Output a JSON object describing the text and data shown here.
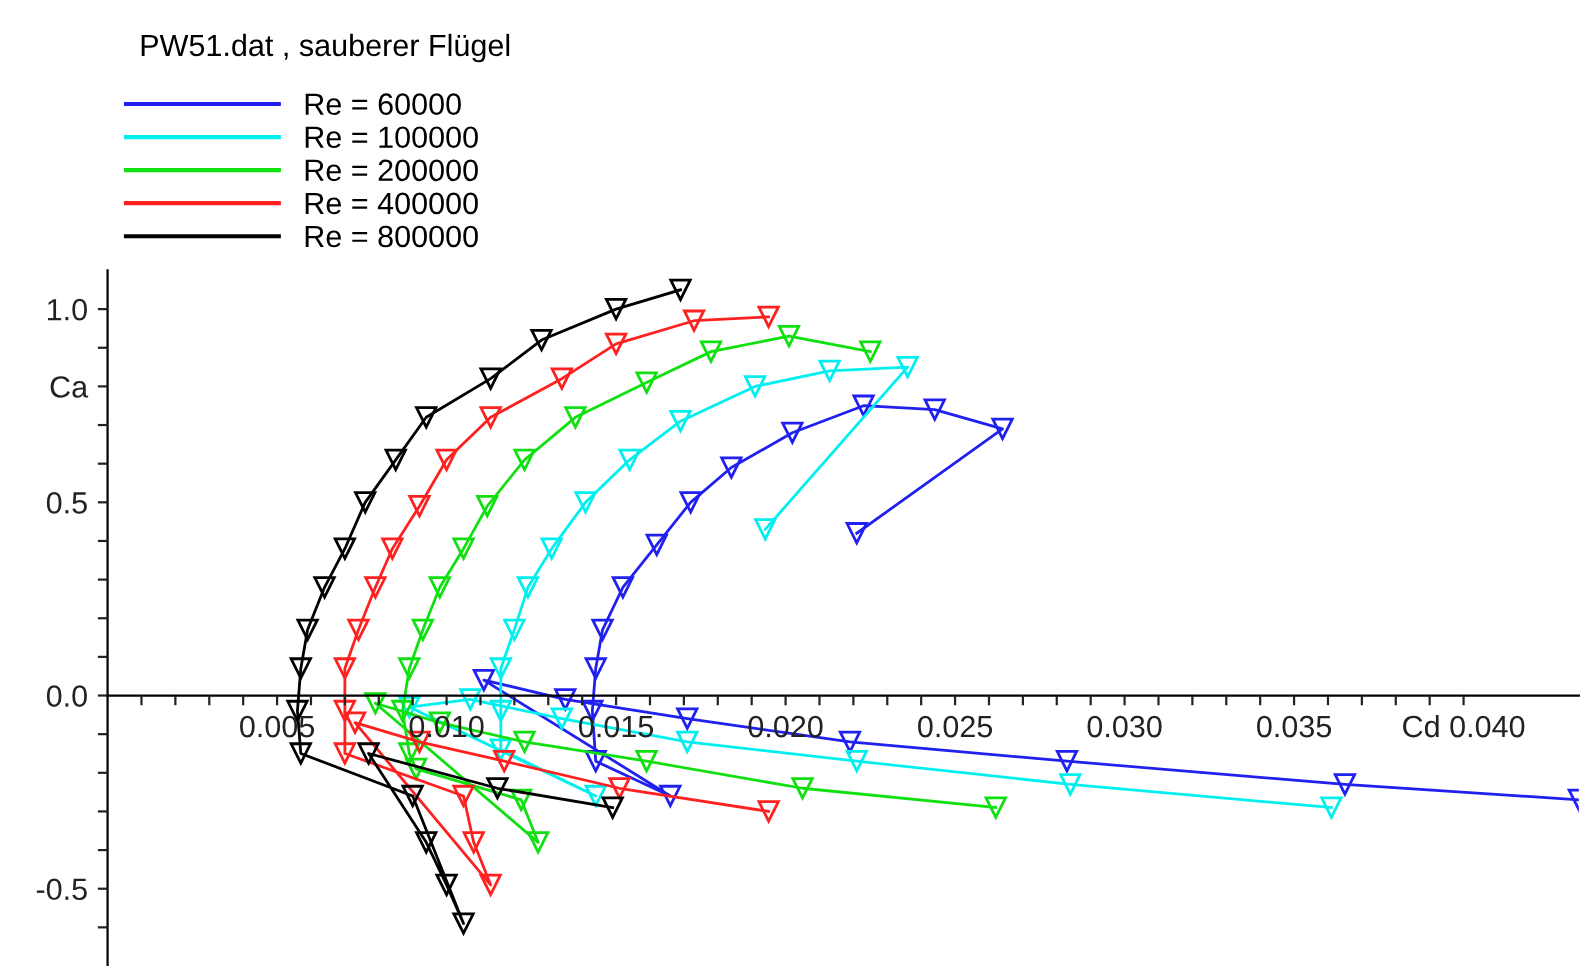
{
  "chart_data": {
    "type": "line",
    "title": "PW51.dat , sauberer Flügel",
    "legend": "top left",
    "marker": "triangle",
    "line_style": "solid",
    "grid": false,
    "xlim": [
      0,
      0.0434
    ],
    "ylim": [
      -0.7,
      1.1
    ],
    "xticks": [
      {
        "value": 0.001,
        "label": null
      },
      {
        "value": 0.002,
        "label": null
      },
      {
        "value": 0.003,
        "label": null
      },
      {
        "value": 0.004,
        "label": null
      },
      {
        "value": 0.005,
        "label": "0.005"
      },
      {
        "value": 0.006,
        "label": null
      },
      {
        "value": 0.007,
        "label": null
      },
      {
        "value": 0.008,
        "label": null
      },
      {
        "value": 0.009,
        "label": null
      },
      {
        "value": 0.01,
        "label": "0.010"
      },
      {
        "value": 0.011,
        "label": null
      },
      {
        "value": 0.012,
        "label": null
      },
      {
        "value": 0.013,
        "label": null
      },
      {
        "value": 0.014,
        "label": null
      },
      {
        "value": 0.015,
        "label": "0.015"
      },
      {
        "value": 0.016,
        "label": null
      },
      {
        "value": 0.017,
        "label": null
      },
      {
        "value": 0.018,
        "label": null
      },
      {
        "value": 0.019,
        "label": null
      },
      {
        "value": 0.02,
        "label": "0.020"
      },
      {
        "value": 0.021,
        "label": null
      },
      {
        "value": 0.022,
        "label": null
      },
      {
        "value": 0.023,
        "label": null
      },
      {
        "value": 0.024,
        "label": null
      },
      {
        "value": 0.025,
        "label": "0.025"
      },
      {
        "value": 0.026,
        "label": null
      },
      {
        "value": 0.027,
        "label": null
      },
      {
        "value": 0.028,
        "label": null
      },
      {
        "value": 0.029,
        "label": null
      },
      {
        "value": 0.03,
        "label": "0.030"
      },
      {
        "value": 0.031,
        "label": null
      },
      {
        "value": 0.032,
        "label": null
      },
      {
        "value": 0.033,
        "label": null
      },
      {
        "value": 0.034,
        "label": null
      },
      {
        "value": 0.035,
        "label": "0.035"
      },
      {
        "value": 0.036,
        "label": null
      },
      {
        "value": 0.037,
        "label": null
      },
      {
        "value": 0.038,
        "label": null
      },
      {
        "value": 0.039,
        "label": null
      },
      {
        "value": 0.04,
        "label": "Cd 0.040"
      }
    ],
    "yticks": [
      {
        "value": -0.6,
        "label": null
      },
      {
        "value": -0.5,
        "label": "-0.5"
      },
      {
        "value": -0.4,
        "label": null
      },
      {
        "value": -0.3,
        "label": null
      },
      {
        "value": -0.2,
        "label": null
      },
      {
        "value": -0.1,
        "label": null
      },
      {
        "value": 0.0,
        "label": "0.0"
      },
      {
        "value": 0.1,
        "label": null
      },
      {
        "value": 0.2,
        "label": null
      },
      {
        "value": 0.3,
        "label": null
      },
      {
        "value": 0.4,
        "label": null
      },
      {
        "value": 0.5,
        "label": "0.5"
      },
      {
        "value": 0.6,
        "label": null
      },
      {
        "value": 0.7,
        "label": null
      },
      {
        "value": 0.8,
        "label": "Ca"
      },
      {
        "value": 0.9,
        "label": null
      },
      {
        "value": 1.0,
        "label": "1.0"
      }
    ],
    "series": [
      {
        "name": "Re = 60000",
        "color": "#2020f0",
        "x": [
          0.0221,
          0.0264,
          0.0244,
          0.0223,
          0.0202,
          0.0184,
          0.0172,
          0.0162,
          0.0152,
          0.0146,
          0.0144,
          0.0143,
          0.0144,
          0.0166,
          0.0111,
          0.0135,
          0.0171,
          0.0219,
          0.0283,
          0.0365,
          0.0434
        ],
        "values": [
          0.42,
          0.69,
          0.74,
          0.75,
          0.68,
          0.59,
          0.5,
          0.39,
          0.28,
          0.17,
          0.07,
          -0.04,
          -0.17,
          -0.26,
          0.04,
          -0.01,
          -0.06,
          -0.12,
          -0.17,
          -0.23,
          -0.27
        ]
      },
      {
        "name": "Re = 100000",
        "color": "#00f0f0",
        "x": [
          0.0194,
          0.0236,
          0.0213,
          0.0191,
          0.0169,
          0.0154,
          0.0141,
          0.0131,
          0.0124,
          0.012,
          0.0116,
          0.0116,
          0.0116,
          0.0144,
          0.0089,
          0.0107,
          0.0134,
          0.0171,
          0.0221,
          0.0284,
          0.0361
        ],
        "values": [
          0.43,
          0.85,
          0.84,
          0.8,
          0.71,
          0.61,
          0.5,
          0.38,
          0.28,
          0.17,
          0.07,
          -0.04,
          -0.14,
          -0.26,
          -0.03,
          -0.01,
          -0.06,
          -0.12,
          -0.17,
          -0.23,
          -0.29
        ]
      },
      {
        "name": "Re = 200000",
        "color": "#10e010",
        "x": [
          0.0225,
          0.0201,
          0.0178,
          0.0159,
          0.0138,
          0.0123,
          0.0112,
          0.0105,
          0.0098,
          0.0093,
          0.0089,
          0.0087,
          0.0089,
          0.0091,
          0.0122,
          0.0127,
          0.0079,
          0.0098,
          0.0123,
          0.0159,
          0.0205,
          0.0262
        ],
        "values": [
          0.89,
          0.93,
          0.89,
          0.81,
          0.72,
          0.61,
          0.49,
          0.38,
          0.28,
          0.17,
          0.07,
          -0.04,
          -0.15,
          -0.19,
          -0.27,
          -0.38,
          -0.02,
          -0.07,
          -0.12,
          -0.17,
          -0.24,
          -0.29
        ]
      },
      {
        "name": "Re = 400000",
        "color": "#ff2020",
        "x": [
          0.0195,
          0.0173,
          0.015,
          0.0134,
          0.0113,
          0.01,
          0.0092,
          0.0084,
          0.0079,
          0.0074,
          0.007,
          0.007,
          0.007,
          0.0105,
          0.0108,
          0.0113,
          0.0073,
          0.0092,
          0.0117,
          0.0151,
          0.0195
        ],
        "values": [
          0.98,
          0.97,
          0.91,
          0.82,
          0.72,
          0.61,
          0.49,
          0.38,
          0.28,
          0.17,
          0.07,
          -0.04,
          -0.15,
          -0.26,
          -0.38,
          -0.49,
          -0.07,
          -0.12,
          -0.17,
          -0.24,
          -0.3
        ]
      },
      {
        "name": "Re = 800000",
        "color": "#000000",
        "x": [
          0.0169,
          0.015,
          0.0128,
          0.0113,
          0.0094,
          0.0085,
          0.0076,
          0.007,
          0.0064,
          0.0059,
          0.0057,
          0.0056,
          0.0057,
          0.009,
          0.0105,
          0.01,
          0.0094,
          0.0077,
          0.0115,
          0.0149
        ],
        "values": [
          1.05,
          1.0,
          0.92,
          0.82,
          0.72,
          0.61,
          0.5,
          0.38,
          0.28,
          0.17,
          0.07,
          -0.04,
          -0.15,
          -0.26,
          -0.59,
          -0.49,
          -0.38,
          -0.15,
          -0.24,
          -0.29
        ]
      }
    ]
  }
}
